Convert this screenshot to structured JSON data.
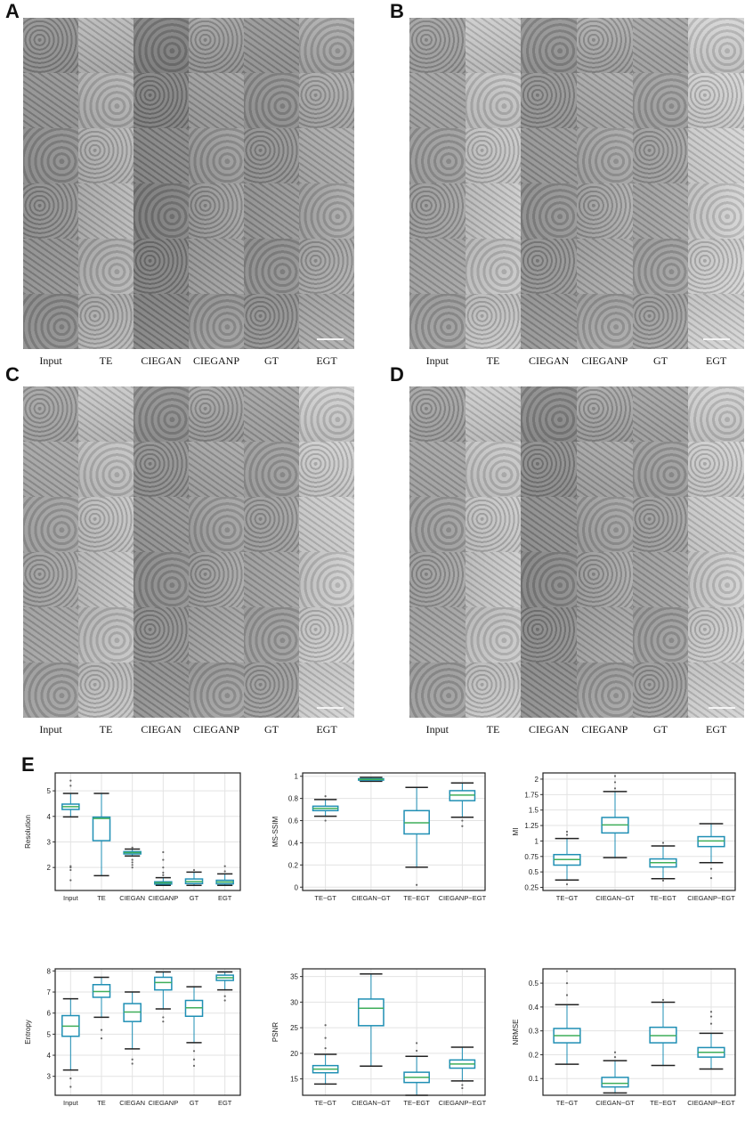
{
  "panels": {
    "A": {
      "letter": "A",
      "columns": [
        "Input",
        "TE",
        "CIEGAN",
        "CIEGANP",
        "GT",
        "EGT"
      ]
    },
    "B": {
      "letter": "B",
      "columns": [
        "Input",
        "TE",
        "CIEGAN",
        "CIEGANP",
        "GT",
        "EGT"
      ]
    },
    "C": {
      "letter": "C",
      "columns": [
        "Input",
        "TE",
        "CIEGAN",
        "CIEGANP",
        "GT",
        "EGT"
      ]
    },
    "D": {
      "letter": "D",
      "columns": [
        "Input",
        "TE",
        "CIEGAN",
        "CIEGANP",
        "GT",
        "EGT"
      ]
    },
    "E": {
      "letter": "E"
    }
  },
  "chart_data": [
    {
      "type": "box",
      "title": "",
      "ylabel": "Resolution",
      "categories": [
        "Input",
        "TE",
        "CIEGAN",
        "CIEGANP",
        "GT",
        "EGT"
      ],
      "ylim": [
        1.1,
        5.7
      ],
      "yticks": [
        2,
        3,
        4,
        5
      ],
      "grid": true,
      "boxes": [
        {
          "whislo": 3.98,
          "q1": 4.27,
          "med": 4.38,
          "q3": 4.48,
          "whishi": 4.9,
          "outliers": [
            2.0,
            1.9,
            2.05,
            5.2,
            5.4,
            1.5
          ]
        },
        {
          "whislo": 1.68,
          "q1": 3.05,
          "med": 3.92,
          "q3": 3.97,
          "whishi": 4.9,
          "outliers": []
        },
        {
          "whislo": 2.45,
          "q1": 2.53,
          "med": 2.58,
          "q3": 2.62,
          "whishi": 2.72,
          "outliers": [
            2.3,
            2.2,
            2.1,
            2.78,
            2.0
          ]
        },
        {
          "whislo": 1.3,
          "q1": 1.35,
          "med": 1.4,
          "q3": 1.44,
          "whishi": 1.6,
          "outliers": [
            1.7,
            1.8,
            2.0,
            2.3,
            2.6
          ]
        },
        {
          "whislo": 1.3,
          "q1": 1.37,
          "med": 1.45,
          "q3": 1.55,
          "whishi": 1.82,
          "outliers": [
            1.9
          ]
        },
        {
          "whislo": 1.3,
          "q1": 1.36,
          "med": 1.43,
          "q3": 1.5,
          "whishi": 1.75,
          "outliers": [
            1.85,
            2.05
          ]
        }
      ]
    },
    {
      "type": "box",
      "title": "",
      "ylabel": "MS-SSIM",
      "categories": [
        "TE~GT",
        "CIEGAN~GT",
        "TE~EGT",
        "CIEGANP~EGT"
      ],
      "ylim": [
        -0.03,
        1.03
      ],
      "yticks": [
        0.0,
        0.2,
        0.4,
        0.6,
        0.8,
        1.0
      ],
      "grid": true,
      "boxes": [
        {
          "whislo": 0.64,
          "q1": 0.69,
          "med": 0.71,
          "q3": 0.73,
          "whishi": 0.79,
          "outliers": [
            0.6,
            0.82
          ]
        },
        {
          "whislo": 0.955,
          "q1": 0.965,
          "med": 0.972,
          "q3": 0.978,
          "whishi": 0.99,
          "outliers": []
        },
        {
          "whislo": 0.18,
          "q1": 0.48,
          "med": 0.58,
          "q3": 0.69,
          "whishi": 0.9,
          "outliers": [
            0.02
          ]
        },
        {
          "whislo": 0.63,
          "q1": 0.78,
          "med": 0.83,
          "q3": 0.87,
          "whishi": 0.94,
          "outliers": [
            0.55,
            0.6
          ]
        }
      ]
    },
    {
      "type": "box",
      "title": "",
      "ylabel": "MI",
      "categories": [
        "TE~GT",
        "CIEGAN~GT",
        "TE~EGT",
        "CIEGANP~EGT"
      ],
      "ylim": [
        0.2,
        2.1
      ],
      "yticks": [
        0.25,
        0.5,
        0.75,
        1.0,
        1.25,
        1.5,
        1.75,
        2.0
      ],
      "grid": true,
      "boxes": [
        {
          "whislo": 0.37,
          "q1": 0.61,
          "med": 0.7,
          "q3": 0.78,
          "whishi": 1.04,
          "outliers": [
            1.1,
            1.15,
            0.3
          ]
        },
        {
          "whislo": 0.73,
          "q1": 1.13,
          "med": 1.26,
          "q3": 1.38,
          "whishi": 1.8,
          "outliers": [
            1.85,
            1.95,
            2.05
          ]
        },
        {
          "whislo": 0.39,
          "q1": 0.58,
          "med": 0.65,
          "q3": 0.71,
          "whishi": 0.92,
          "outliers": [
            0.36,
            0.97
          ]
        },
        {
          "whislo": 0.65,
          "q1": 0.91,
          "med": 1.0,
          "q3": 1.07,
          "whishi": 1.28,
          "outliers": [
            0.55,
            0.4
          ]
        }
      ]
    },
    {
      "type": "box",
      "title": "",
      "ylabel": "Entropy",
      "categories": [
        "Input",
        "TE",
        "CIEGAN",
        "CIEGANP",
        "GT",
        "EGT"
      ],
      "ylim": [
        2.1,
        8.1
      ],
      "yticks": [
        3,
        4,
        5,
        6,
        7,
        8
      ],
      "grid": true,
      "boxes": [
        {
          "whislo": 3.3,
          "q1": 4.9,
          "med": 5.38,
          "q3": 5.88,
          "whishi": 6.68,
          "outliers": [
            2.5,
            2.9
          ]
        },
        {
          "whislo": 5.8,
          "q1": 6.75,
          "med": 7.02,
          "q3": 7.35,
          "whishi": 7.7,
          "outliers": [
            5.2,
            4.8
          ]
        },
        {
          "whislo": 4.3,
          "q1": 5.6,
          "med": 6.05,
          "q3": 6.45,
          "whishi": 7.0,
          "outliers": [
            3.8,
            3.6
          ]
        },
        {
          "whislo": 6.2,
          "q1": 7.1,
          "med": 7.45,
          "q3": 7.7,
          "whishi": 7.95,
          "outliers": [
            5.8,
            5.6
          ]
        },
        {
          "whislo": 4.6,
          "q1": 5.85,
          "med": 6.25,
          "q3": 6.6,
          "whishi": 7.25,
          "outliers": [
            3.8,
            3.5,
            4.2
          ]
        },
        {
          "whislo": 7.1,
          "q1": 7.55,
          "med": 7.68,
          "q3": 7.8,
          "whishi": 7.95,
          "outliers": [
            6.8,
            6.6
          ]
        }
      ]
    },
    {
      "type": "box",
      "title": "",
      "ylabel": "PSNR",
      "categories": [
        "TE~GT",
        "CIEGAN~GT",
        "TE~EGT",
        "CIEGANP~EGT"
      ],
      "ylim": [
        11.8,
        36.5
      ],
      "yticks": [
        15,
        20,
        25,
        30,
        35
      ],
      "grid": true,
      "boxes": [
        {
          "whislo": 14.0,
          "q1": 16.2,
          "med": 16.9,
          "q3": 17.6,
          "whishi": 19.8,
          "outliers": [
            21.0,
            23.0,
            25.5
          ]
        },
        {
          "whislo": 17.5,
          "q1": 25.4,
          "med": 28.8,
          "q3": 30.6,
          "whishi": 35.5,
          "outliers": []
        },
        {
          "whislo": 11.8,
          "q1": 14.3,
          "med": 15.3,
          "q3": 16.3,
          "whishi": 19.4,
          "outliers": [
            20.5,
            22.0
          ]
        },
        {
          "whislo": 14.6,
          "q1": 17.1,
          "med": 17.9,
          "q3": 18.7,
          "whishi": 21.2,
          "outliers": [
            13.8,
            13.2
          ]
        }
      ]
    },
    {
      "type": "box",
      "title": "",
      "ylabel": "NRMSE",
      "categories": [
        "TE~GT",
        "CIEGAN~GT",
        "TE~EGT",
        "CIEGANP~EGT"
      ],
      "ylim": [
        0.03,
        0.56
      ],
      "yticks": [
        0.1,
        0.2,
        0.3,
        0.4,
        0.5
      ],
      "grid": true,
      "boxes": [
        {
          "whislo": 0.16,
          "q1": 0.25,
          "med": 0.28,
          "q3": 0.31,
          "whishi": 0.41,
          "outliers": [
            0.45,
            0.5,
            0.55
          ]
        },
        {
          "whislo": 0.04,
          "q1": 0.065,
          "med": 0.08,
          "q3": 0.105,
          "whishi": 0.175,
          "outliers": [
            0.19,
            0.21
          ]
        },
        {
          "whislo": 0.155,
          "q1": 0.25,
          "med": 0.28,
          "q3": 0.315,
          "whishi": 0.42,
          "outliers": [
            0.43
          ]
        },
        {
          "whislo": 0.14,
          "q1": 0.19,
          "med": 0.21,
          "q3": 0.23,
          "whishi": 0.29,
          "outliers": [
            0.33,
            0.36,
            0.38
          ]
        }
      ]
    }
  ]
}
